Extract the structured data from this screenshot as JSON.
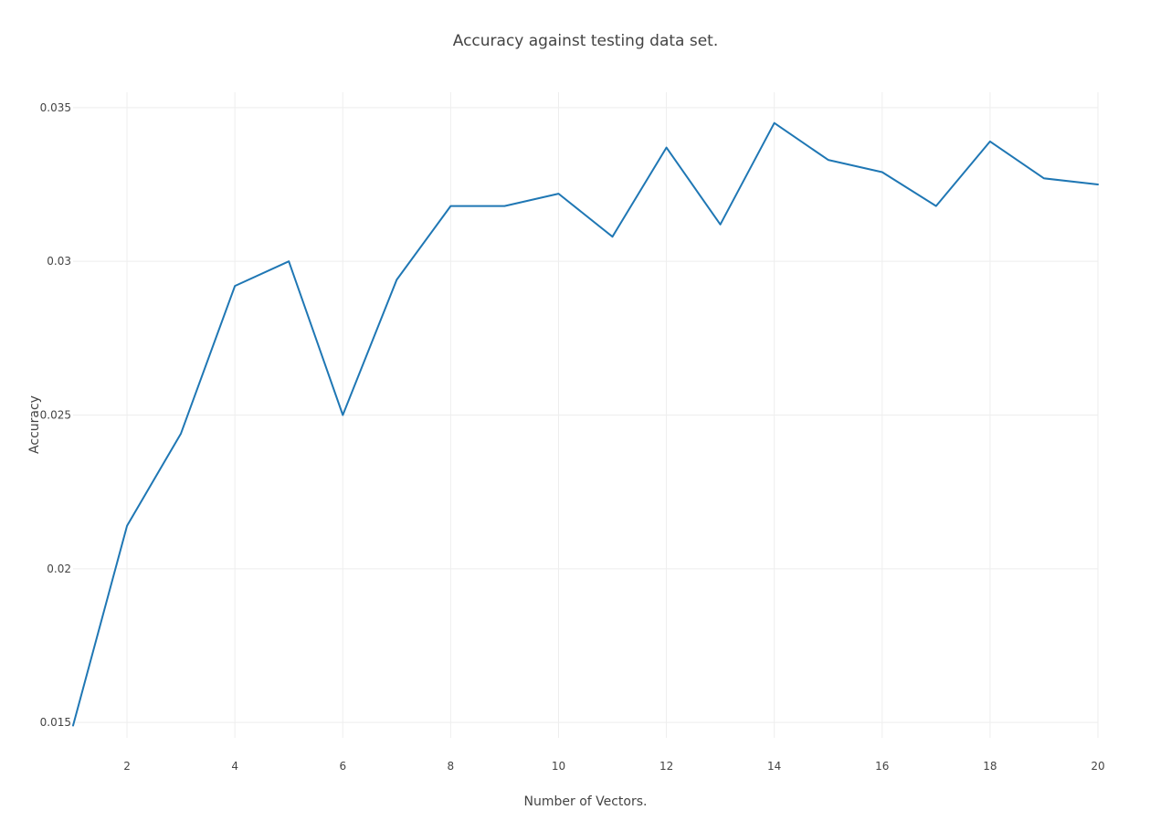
{
  "chart_data": {
    "type": "line",
    "title": "Accuracy against testing data set.",
    "xlabel": "Number of Vectors.",
    "ylabel": "Accuracy",
    "xlim": [
      1,
      20
    ],
    "ylim": [
      0.0145,
      0.0355
    ],
    "grid": true,
    "legend": "none",
    "x_ticks": [
      2,
      4,
      6,
      8,
      10,
      12,
      14,
      16,
      18,
      20
    ],
    "x_tick_labels": [
      "2",
      "4",
      "6",
      "8",
      "10",
      "12",
      "14",
      "16",
      "18",
      "20"
    ],
    "y_ticks": [
      0.015,
      0.02,
      0.025,
      0.03,
      0.035
    ],
    "y_tick_labels": [
      "0.015",
      "0.02",
      "0.025",
      "0.03",
      "0.035"
    ],
    "series": [
      {
        "color": "#1f77b4",
        "x": [
          1,
          2,
          3,
          4,
          5,
          6,
          7,
          8,
          9,
          10,
          11,
          12,
          13,
          14,
          15,
          16,
          17,
          18,
          19,
          20
        ],
        "values": [
          0.0149,
          0.0214,
          0.0244,
          0.0292,
          0.03,
          0.025,
          0.0294,
          0.0318,
          0.0318,
          0.0322,
          0.0308,
          0.0337,
          0.0312,
          0.0345,
          0.0333,
          0.0329,
          0.0318,
          0.0339,
          0.0327,
          0.0325
        ]
      }
    ]
  }
}
